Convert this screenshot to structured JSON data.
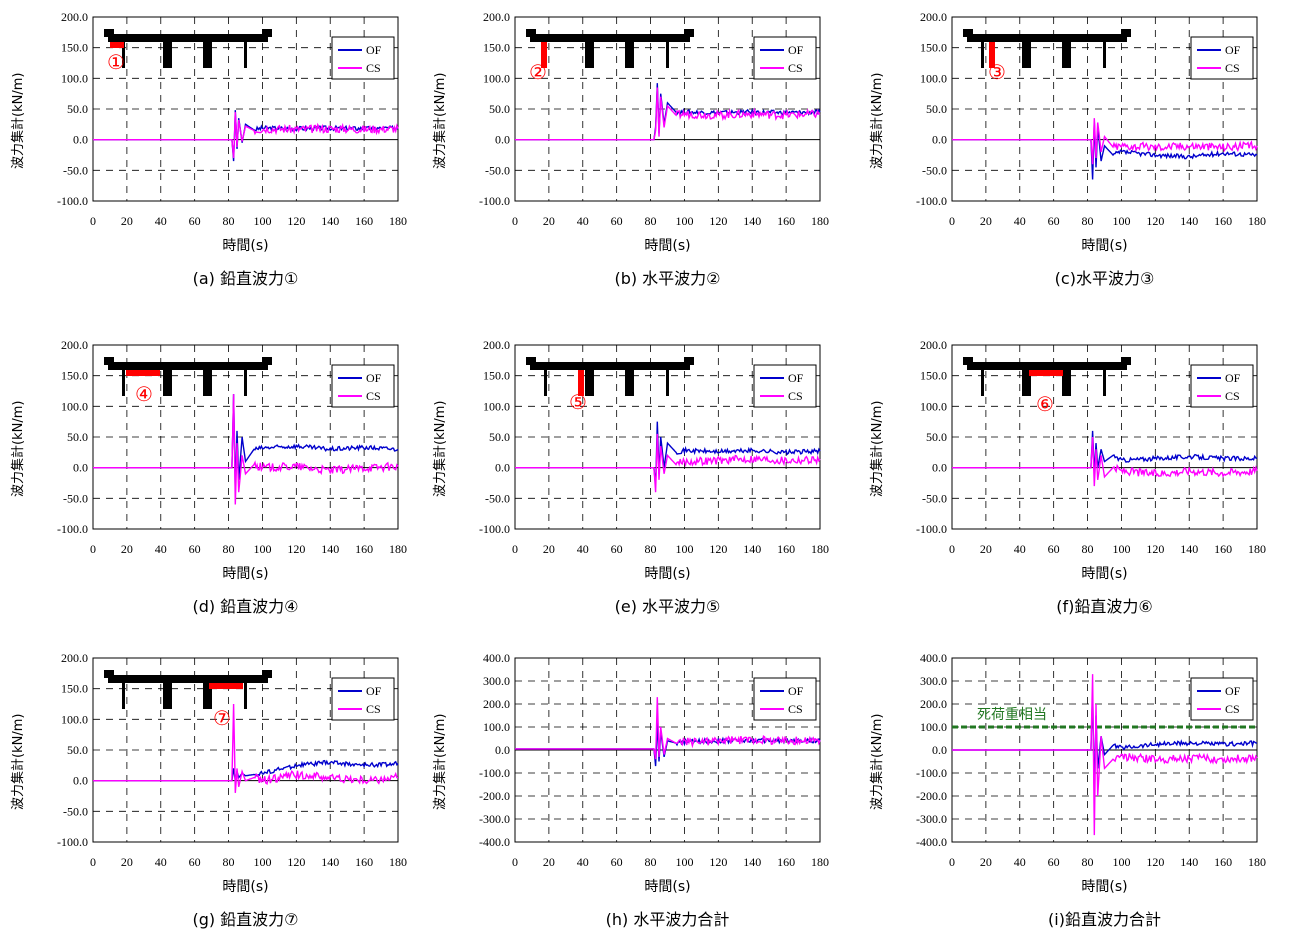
{
  "x_axis_label": "時間(s)",
  "y_axis_label": "波力集計(kN/m)",
  "colors": {
    "OF": "#0000cc",
    "CS": "#ff00ff",
    "marker": "#ff0000",
    "dead_load": "#227722"
  },
  "chart_data": [
    {
      "id": "a",
      "caption": "(a)  鉛直波力①",
      "marker": "①",
      "type": "line",
      "xlim": [
        0,
        180
      ],
      "ylim": [
        -100,
        200
      ],
      "xticks": [
        0,
        20,
        40,
        60,
        80,
        100,
        120,
        140,
        160,
        180
      ],
      "yticks": [
        "200.0",
        "150.0",
        "100.0",
        "50.0",
        "0.0",
        "-50.0",
        "-100.0"
      ],
      "legend": [
        "OF",
        "CS"
      ],
      "legend_position": "top-right",
      "series": [
        {
          "name": "OF",
          "values_desc": "",
          "x": [
            0,
            82,
            83,
            84,
            85,
            86,
            88,
            90,
            95,
            100,
            120,
            140,
            160,
            180
          ],
          "y": [
            0,
            0,
            -35,
            48,
            -15,
            35,
            -5,
            25,
            16,
            19,
            18,
            19,
            18,
            19
          ]
        },
        {
          "name": "CS",
          "x": [
            0,
            82,
            83,
            84,
            85,
            86,
            88,
            90,
            95,
            100,
            120,
            140,
            160,
            180
          ],
          "y": [
            0,
            0,
            -30,
            45,
            -12,
            32,
            -3,
            22,
            15,
            18,
            17,
            18,
            17,
            18
          ]
        }
      ]
    },
    {
      "id": "b",
      "caption": "(b)  水平波力②",
      "marker": "②",
      "type": "line",
      "xlim": [
        0,
        180
      ],
      "ylim": [
        -100,
        200
      ],
      "xticks": [
        0,
        20,
        40,
        60,
        80,
        100,
        120,
        140,
        160,
        180
      ],
      "yticks": [
        "200.0",
        "150.0",
        "100.0",
        "50.0",
        "0.0",
        "-50.0",
        "-100.0"
      ],
      "legend": [
        "OF",
        "CS"
      ],
      "legend_position": "top-right",
      "series": [
        {
          "name": "OF",
          "x": [
            0,
            82,
            83,
            84,
            85,
            86,
            88,
            90,
            95,
            100,
            120,
            140,
            160,
            180
          ],
          "y": [
            0,
            0,
            20,
            92,
            10,
            75,
            25,
            60,
            45,
            45,
            44,
            45,
            44,
            45
          ]
        },
        {
          "name": "CS",
          "x": [
            0,
            82,
            83,
            84,
            85,
            86,
            88,
            90,
            95,
            100,
            120,
            140,
            160,
            180
          ],
          "y": [
            0,
            0,
            15,
            85,
            5,
            70,
            20,
            55,
            40,
            42,
            40,
            42,
            40,
            42
          ]
        }
      ]
    },
    {
      "id": "c",
      "caption": "(c)水平波力③",
      "marker": "③",
      "type": "line",
      "xlim": [
        0,
        180
      ],
      "ylim": [
        -100,
        200
      ],
      "xticks": [
        0,
        20,
        40,
        60,
        80,
        100,
        120,
        140,
        160,
        180
      ],
      "yticks": [
        "200.0",
        "150.0",
        "100.0",
        "50.0",
        "0.0",
        "-50.0",
        "-100.0"
      ],
      "legend": [
        "OF",
        "CS"
      ],
      "legend_position": "top-right",
      "series": [
        {
          "name": "OF",
          "x": [
            0,
            82,
            83,
            84,
            85,
            86,
            88,
            90,
            95,
            100,
            120,
            140,
            160,
            180
          ],
          "y": [
            0,
            0,
            -65,
            30,
            -45,
            20,
            -35,
            -10,
            -25,
            -20,
            -25,
            -28,
            -22,
            -25
          ]
        },
        {
          "name": "CS",
          "x": [
            0,
            82,
            83,
            84,
            85,
            86,
            88,
            90,
            95,
            100,
            120,
            140,
            160,
            180
          ],
          "y": [
            0,
            0,
            -40,
            35,
            -30,
            28,
            -20,
            5,
            -12,
            -10,
            -12,
            -10,
            -12,
            -10
          ]
        }
      ]
    },
    {
      "id": "d",
      "caption": "(d)  鉛直波力④",
      "marker": "④",
      "type": "line",
      "xlim": [
        0,
        180
      ],
      "ylim": [
        -100,
        200
      ],
      "xticks": [
        0,
        20,
        40,
        60,
        80,
        100,
        120,
        140,
        160,
        180
      ],
      "yticks": [
        "200.0",
        "150.0",
        "100.0",
        "50.0",
        "0.0",
        "-50.0",
        "-100.0"
      ],
      "legend": [
        "OF",
        "CS"
      ],
      "legend_position": "top-right",
      "series": [
        {
          "name": "OF",
          "x": [
            0,
            82,
            83,
            84,
            85,
            86,
            88,
            90,
            95,
            100,
            120,
            140,
            160,
            180
          ],
          "y": [
            0,
            0,
            120,
            -40,
            60,
            -20,
            50,
            10,
            30,
            32,
            35,
            30,
            33,
            30
          ]
        },
        {
          "name": "CS",
          "x": [
            0,
            82,
            83,
            84,
            85,
            86,
            88,
            90,
            95,
            100,
            120,
            140,
            160,
            180
          ],
          "y": [
            0,
            0,
            120,
            -60,
            40,
            -40,
            20,
            -10,
            5,
            0,
            2,
            -5,
            0,
            2
          ]
        }
      ]
    },
    {
      "id": "e",
      "caption": "(e)  水平波力⑤",
      "marker": "⑤",
      "type": "line",
      "xlim": [
        0,
        180
      ],
      "ylim": [
        -100,
        200
      ],
      "xticks": [
        0,
        20,
        40,
        60,
        80,
        100,
        120,
        140,
        160,
        180
      ],
      "yticks": [
        "200.0",
        "150.0",
        "100.0",
        "50.0",
        "0.0",
        "-50.0",
        "-100.0"
      ],
      "legend": [
        "OF",
        "CS"
      ],
      "legend_position": "top-right",
      "series": [
        {
          "name": "OF",
          "x": [
            0,
            82,
            83,
            84,
            85,
            86,
            88,
            90,
            95,
            100,
            120,
            140,
            160,
            180
          ],
          "y": [
            0,
            0,
            -30,
            75,
            -10,
            50,
            0,
            40,
            25,
            28,
            26,
            28,
            25,
            27
          ]
        },
        {
          "name": "CS",
          "x": [
            0,
            82,
            83,
            84,
            85,
            86,
            88,
            90,
            95,
            100,
            120,
            140,
            160,
            180
          ],
          "y": [
            0,
            0,
            -40,
            55,
            -20,
            35,
            -10,
            20,
            5,
            10,
            12,
            15,
            12,
            14
          ]
        }
      ]
    },
    {
      "id": "f",
      "caption": "(f)鉛直波力⑥",
      "marker": "⑥",
      "type": "line",
      "xlim": [
        0,
        180
      ],
      "ylim": [
        -100,
        200
      ],
      "xticks": [
        0,
        20,
        40,
        60,
        80,
        100,
        120,
        140,
        160,
        180
      ],
      "yticks": [
        "200.0",
        "150.0",
        "100.0",
        "50.0",
        "0.0",
        "-50.0",
        "-100.0"
      ],
      "legend": [
        "OF",
        "CS"
      ],
      "legend_position": "top-right",
      "series": [
        {
          "name": "OF",
          "x": [
            0,
            82,
            83,
            84,
            85,
            86,
            88,
            90,
            95,
            100,
            120,
            140,
            160,
            180
          ],
          "y": [
            0,
            0,
            60,
            -10,
            40,
            0,
            30,
            10,
            20,
            12,
            15,
            18,
            15,
            15
          ]
        },
        {
          "name": "CS",
          "x": [
            0,
            82,
            83,
            84,
            85,
            86,
            88,
            90,
            95,
            100,
            120,
            140,
            160,
            180
          ],
          "y": [
            0,
            0,
            50,
            -30,
            30,
            -20,
            20,
            -15,
            0,
            -5,
            -10,
            -5,
            -8,
            -5
          ]
        }
      ]
    },
    {
      "id": "g",
      "caption": "(g)  鉛直波力⑦",
      "marker": "⑦",
      "type": "line",
      "xlim": [
        0,
        180
      ],
      "ylim": [
        -100,
        200
      ],
      "xticks": [
        0,
        20,
        40,
        60,
        80,
        100,
        120,
        140,
        160,
        180
      ],
      "yticks": [
        "200.0",
        "150.0",
        "100.0",
        "50.0",
        "0.0",
        "-50.0",
        "-100.0"
      ],
      "legend": [
        "OF",
        "CS"
      ],
      "legend_position": "top-right",
      "series": [
        {
          "name": "OF",
          "x": [
            0,
            82,
            83,
            84,
            85,
            86,
            88,
            90,
            95,
            100,
            120,
            140,
            160,
            180
          ],
          "y": [
            0,
            0,
            20,
            0,
            15,
            5,
            12,
            8,
            10,
            12,
            25,
            30,
            25,
            28
          ]
        },
        {
          "name": "CS",
          "x": [
            0,
            82,
            83,
            84,
            85,
            86,
            88,
            90,
            95,
            100,
            120,
            140,
            160,
            180
          ],
          "y": [
            0,
            0,
            125,
            -20,
            20,
            -10,
            15,
            0,
            5,
            0,
            10,
            5,
            0,
            5
          ]
        }
      ]
    },
    {
      "id": "h",
      "caption": "(h)  水平波力合計",
      "type": "line",
      "xlim": [
        0,
        180
      ],
      "ylim": [
        -400,
        400
      ],
      "xticks": [
        0,
        20,
        40,
        60,
        80,
        100,
        120,
        140,
        160,
        180
      ],
      "yticks": [
        "400.0",
        "300.0",
        "200.0",
        "100.0",
        "0.0",
        "-100.0",
        "-200.0",
        "-300.0",
        "-400.0"
      ],
      "legend": [
        "OF",
        "CS"
      ],
      "legend_position": "top-right",
      "series": [
        {
          "name": "OF",
          "x": [
            0,
            82,
            83,
            84,
            85,
            86,
            88,
            90,
            95,
            100,
            120,
            140,
            160,
            180
          ],
          "y": [
            5,
            5,
            -70,
            120,
            -50,
            80,
            -30,
            40,
            30,
            35,
            40,
            42,
            40,
            40
          ]
        },
        {
          "name": "CS",
          "x": [
            0,
            82,
            83,
            84,
            85,
            86,
            88,
            90,
            95,
            100,
            120,
            140,
            160,
            180
          ],
          "y": [
            5,
            5,
            -40,
            230,
            -30,
            100,
            -20,
            50,
            30,
            35,
            40,
            45,
            40,
            42
          ]
        }
      ]
    },
    {
      "id": "i",
      "caption": "(i)鉛直波力合計",
      "type": "line",
      "xlim": [
        0,
        180
      ],
      "ylim": [
        -400,
        400
      ],
      "xticks": [
        0,
        20,
        40,
        60,
        80,
        100,
        120,
        140,
        160,
        180
      ],
      "yticks": [
        "400.0",
        "300.0",
        "200.0",
        "100.0",
        "0.0",
        "-100.0",
        "-200.0",
        "-300.0",
        "-400.0"
      ],
      "legend": [
        "OF",
        "CS"
      ],
      "legend_position": "top-right",
      "annotation": "死荷重相当",
      "reference_line": 100,
      "series": [
        {
          "name": "OF",
          "x": [
            0,
            82,
            83,
            84,
            85,
            86,
            88,
            90,
            95,
            100,
            120,
            140,
            160,
            180
          ],
          "y": [
            0,
            0,
            250,
            -200,
            150,
            -80,
            60,
            -20,
            20,
            10,
            25,
            30,
            25,
            30
          ]
        },
        {
          "name": "CS",
          "x": [
            0,
            82,
            83,
            84,
            85,
            86,
            88,
            90,
            95,
            100,
            120,
            140,
            160,
            180
          ],
          "y": [
            0,
            0,
            330,
            -370,
            200,
            -200,
            60,
            -80,
            -40,
            -30,
            -40,
            -35,
            -40,
            -35
          ]
        }
      ]
    }
  ]
}
